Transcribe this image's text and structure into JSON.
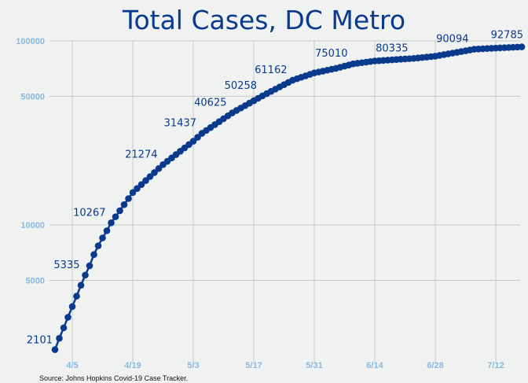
{
  "chart_data": {
    "type": "line",
    "title": "Total Cases, DC Metro",
    "source": "Source: Johns Hopkins Covid-19 Case Tracker.",
    "yscale": "log",
    "ylim": [
      1800,
      100000
    ],
    "y_ticks": [
      5000,
      10000,
      50000,
      100000
    ],
    "x_tick_labels": [
      "4/5",
      "4/19",
      "5/3",
      "5/17",
      "5/31",
      "6/14",
      "6/28",
      "7/12"
    ],
    "x_tick_days": [
      5,
      19,
      33,
      47,
      61,
      75,
      89,
      103
    ],
    "grid": true,
    "marker_color": "#0a3a8c",
    "start_date": "4/1",
    "end_date": "7/18",
    "anchors": [
      [
        "4/1",
        2101
      ],
      [
        "4/2",
        2420
      ],
      [
        "4/3",
        2760
      ],
      [
        "4/4",
        3150
      ],
      [
        "4/5",
        3600
      ],
      [
        "4/6",
        4100
      ],
      [
        "4/7",
        4700
      ],
      [
        "4/8",
        5335
      ],
      [
        "4/9",
        6000
      ],
      [
        "4/10",
        6900
      ],
      [
        "4/11",
        7700
      ],
      [
        "4/12",
        8500
      ],
      [
        "4/13",
        9300
      ],
      [
        "4/14",
        10267
      ],
      [
        "4/19",
        15000
      ],
      [
        "4/26",
        21274
      ],
      [
        "5/3",
        28500
      ],
      [
        "5/5",
        31437
      ],
      [
        "5/12",
        40625
      ],
      [
        "5/19",
        50258
      ],
      [
        "5/26",
        61162
      ],
      [
        "5/31",
        67000
      ],
      [
        "6/5",
        70900
      ],
      [
        "6/9",
        75010
      ],
      [
        "6/14",
        77800
      ],
      [
        "6/23",
        80335
      ],
      [
        "6/28",
        82600
      ],
      [
        "7/7",
        90094
      ],
      [
        "7/12",
        91400
      ],
      [
        "7/18",
        92785
      ]
    ],
    "data_labels": [
      {
        "date": "4/1",
        "value": 2101,
        "text": "2101"
      },
      {
        "date": "4/8",
        "value": 5335,
        "text": "5335"
      },
      {
        "date": "4/14",
        "value": 10267,
        "text": "10267"
      },
      {
        "date": "4/26",
        "value": 21274,
        "text": "21274"
      },
      {
        "date": "5/5",
        "value": 31437,
        "text": "31437"
      },
      {
        "date": "5/12",
        "value": 40625,
        "text": "40625"
      },
      {
        "date": "5/19",
        "value": 50258,
        "text": "50258"
      },
      {
        "date": "5/26",
        "value": 61162,
        "text": "61162"
      },
      {
        "date": "6/9",
        "value": 75010,
        "text": "75010"
      },
      {
        "date": "6/23",
        "value": 80335,
        "text": "80335"
      },
      {
        "date": "7/7",
        "value": 90094,
        "text": "90094"
      },
      {
        "date": "7/18",
        "value": 92785,
        "text": "92785"
      }
    ]
  }
}
